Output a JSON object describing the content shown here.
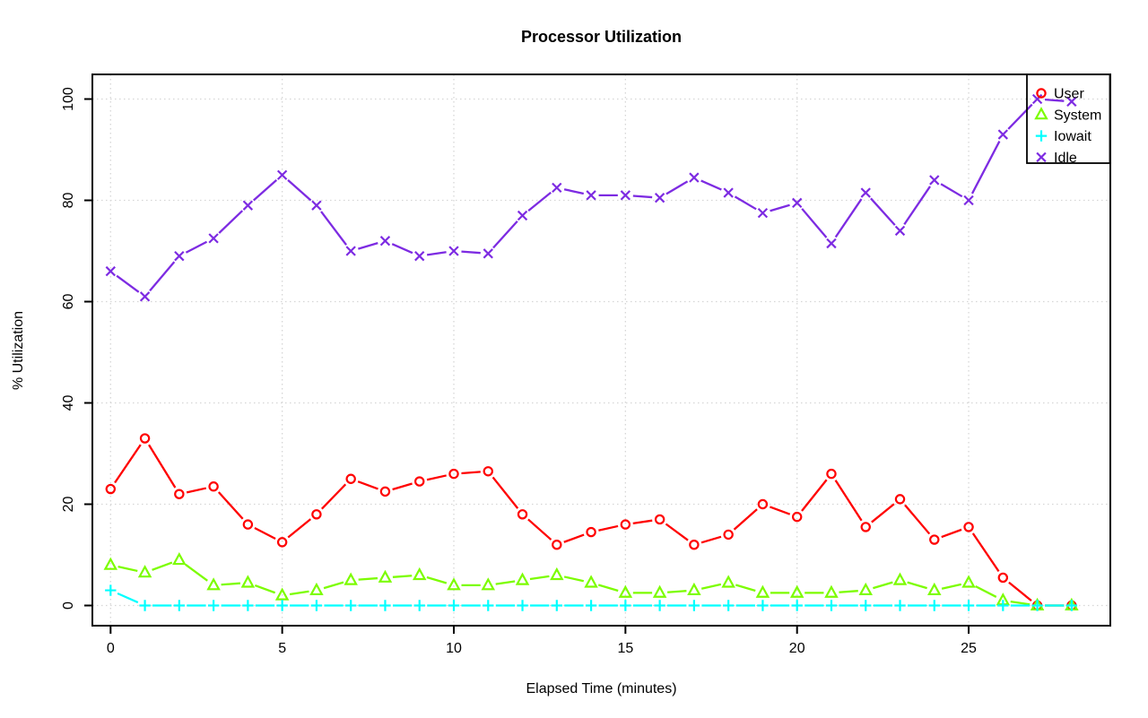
{
  "chart_data": {
    "type": "line",
    "title": "Processor Utilization",
    "xlabel": "Elapsed Time (minutes)",
    "ylabel": "% Utilization",
    "x": [
      0,
      1,
      2,
      3,
      4,
      5,
      6,
      7,
      8,
      9,
      10,
      11,
      12,
      13,
      14,
      15,
      16,
      17,
      18,
      19,
      20,
      21,
      22,
      23,
      24,
      25,
      26,
      27,
      28
    ],
    "x_ticks": [
      0,
      5,
      10,
      15,
      20,
      25
    ],
    "y_ticks": [
      0,
      20,
      40,
      60,
      80,
      100
    ],
    "xlim": [
      -0.53,
      29.1
    ],
    "ylim": [
      -4,
      104.9
    ],
    "grid": true,
    "grid_style": "dotted",
    "legend_position": "top-right",
    "legend": [
      "User",
      "System",
      "Iowait",
      "Idle"
    ],
    "series": [
      {
        "name": "User",
        "color": "#FF0000",
        "marker": "circle",
        "values": [
          23,
          33,
          22,
          23.5,
          16,
          12.5,
          18,
          25,
          22.5,
          24.5,
          26,
          26.5,
          18,
          12,
          14.5,
          16,
          17,
          12,
          14,
          20,
          17.5,
          26,
          15.5,
          21,
          13,
          15.5,
          5.5,
          0,
          0
        ]
      },
      {
        "name": "System",
        "color": "#7CFC00",
        "marker": "triangle",
        "values": [
          8,
          6.5,
          9,
          4,
          4.5,
          2,
          3,
          5,
          5.5,
          6,
          4,
          4,
          5,
          6,
          4.5,
          2.5,
          2.5,
          3,
          4.5,
          2.5,
          2.5,
          2.5,
          3,
          5,
          3,
          4.5,
          1,
          0,
          0
        ]
      },
      {
        "name": "Iowait",
        "color": "#00FFFF",
        "marker": "plus",
        "values": [
          3,
          0,
          0,
          0,
          0,
          0,
          0,
          0,
          0,
          0,
          0,
          0,
          0,
          0,
          0,
          0,
          0,
          0,
          0,
          0,
          0,
          0,
          0,
          0,
          0,
          0,
          0,
          0,
          0
        ]
      },
      {
        "name": "Idle",
        "color": "#7D2BE2",
        "marker": "x",
        "values": [
          66,
          61,
          69,
          72.5,
          79,
          85,
          79,
          70,
          72,
          69,
          70,
          69.5,
          77,
          82.5,
          81,
          81,
          80.5,
          84.5,
          81.5,
          77.5,
          79.5,
          71.5,
          81.5,
          74,
          84,
          80,
          93,
          100,
          99.5
        ]
      }
    ]
  },
  "colors": {
    "background": "#FFFFFF",
    "axis": "#000000",
    "grid": "#D6D6D6",
    "text": "#000000"
  }
}
